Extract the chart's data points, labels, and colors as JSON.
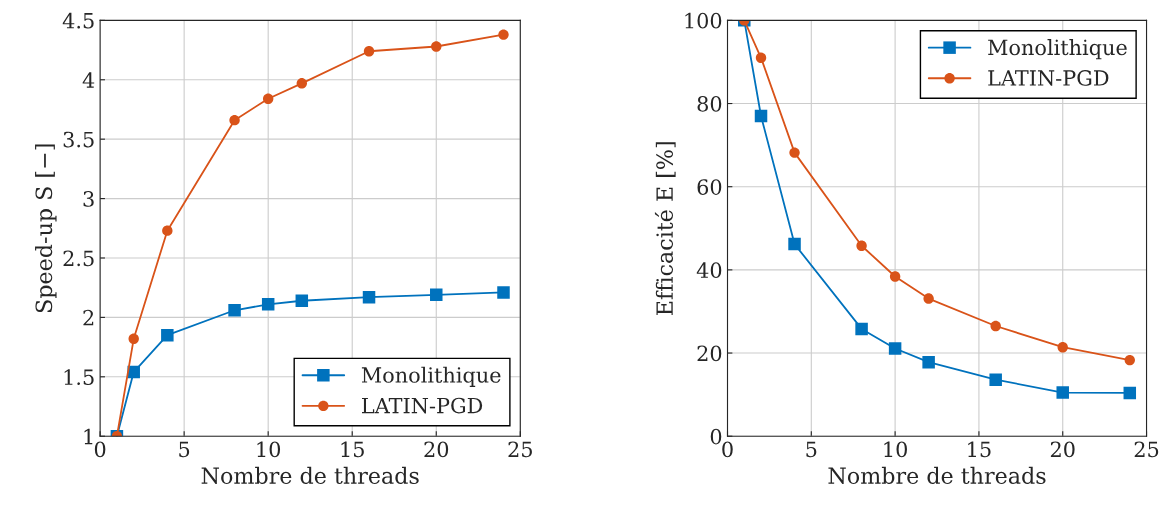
{
  "chart_data": [
    {
      "type": "line",
      "xlabel": "Nombre de threads",
      "ylabel": "Speed-up S [−]",
      "x": [
        1,
        2,
        4,
        8,
        10,
        12,
        16,
        20,
        24
      ],
      "series": [
        {
          "name": "Monolithique",
          "color": "#0072bd",
          "marker": "square",
          "values": [
            1,
            1.54,
            1.85,
            2.06,
            2.11,
            2.14,
            2.17,
            2.19,
            2.21
          ]
        },
        {
          "name": "LATIN-PGD",
          "color": "#d95319",
          "marker": "circle",
          "values": [
            1,
            1.82,
            2.73,
            3.66,
            3.84,
            3.97,
            4.24,
            4.28,
            4.38
          ]
        }
      ],
      "xlim": [
        0,
        25
      ],
      "xticks": [
        0,
        5,
        10,
        15,
        20,
        25
      ],
      "ylim": [
        1,
        4.5
      ],
      "yticks": [
        1,
        1.5,
        2,
        2.5,
        3,
        3.5,
        4,
        4.5
      ],
      "grid": true,
      "legend": "bottom right"
    },
    {
      "type": "line",
      "xlabel": "Nombre de threads",
      "ylabel": "Efficacité E [%]",
      "x": [
        1,
        2,
        4,
        8,
        10,
        12,
        16,
        20,
        24
      ],
      "series": [
        {
          "name": "Monolithique",
          "color": "#0072bd",
          "marker": "square",
          "values": [
            100,
            77,
            46.2,
            25.8,
            21.1,
            17.8,
            13.6,
            10.5,
            10.4
          ]
        },
        {
          "name": "LATIN-PGD",
          "color": "#d95319",
          "marker": "circle",
          "values": [
            100,
            91,
            68.2,
            45.8,
            38.4,
            33.1,
            26.5,
            21.4,
            18.3
          ]
        }
      ],
      "xlim": [
        0,
        25
      ],
      "xticks": [
        0,
        5,
        10,
        15,
        20,
        25
      ],
      "ylim": [
        0,
        100
      ],
      "yticks": [
        0,
        20,
        40,
        60,
        80,
        100
      ],
      "grid": true,
      "legend": "top right"
    }
  ]
}
